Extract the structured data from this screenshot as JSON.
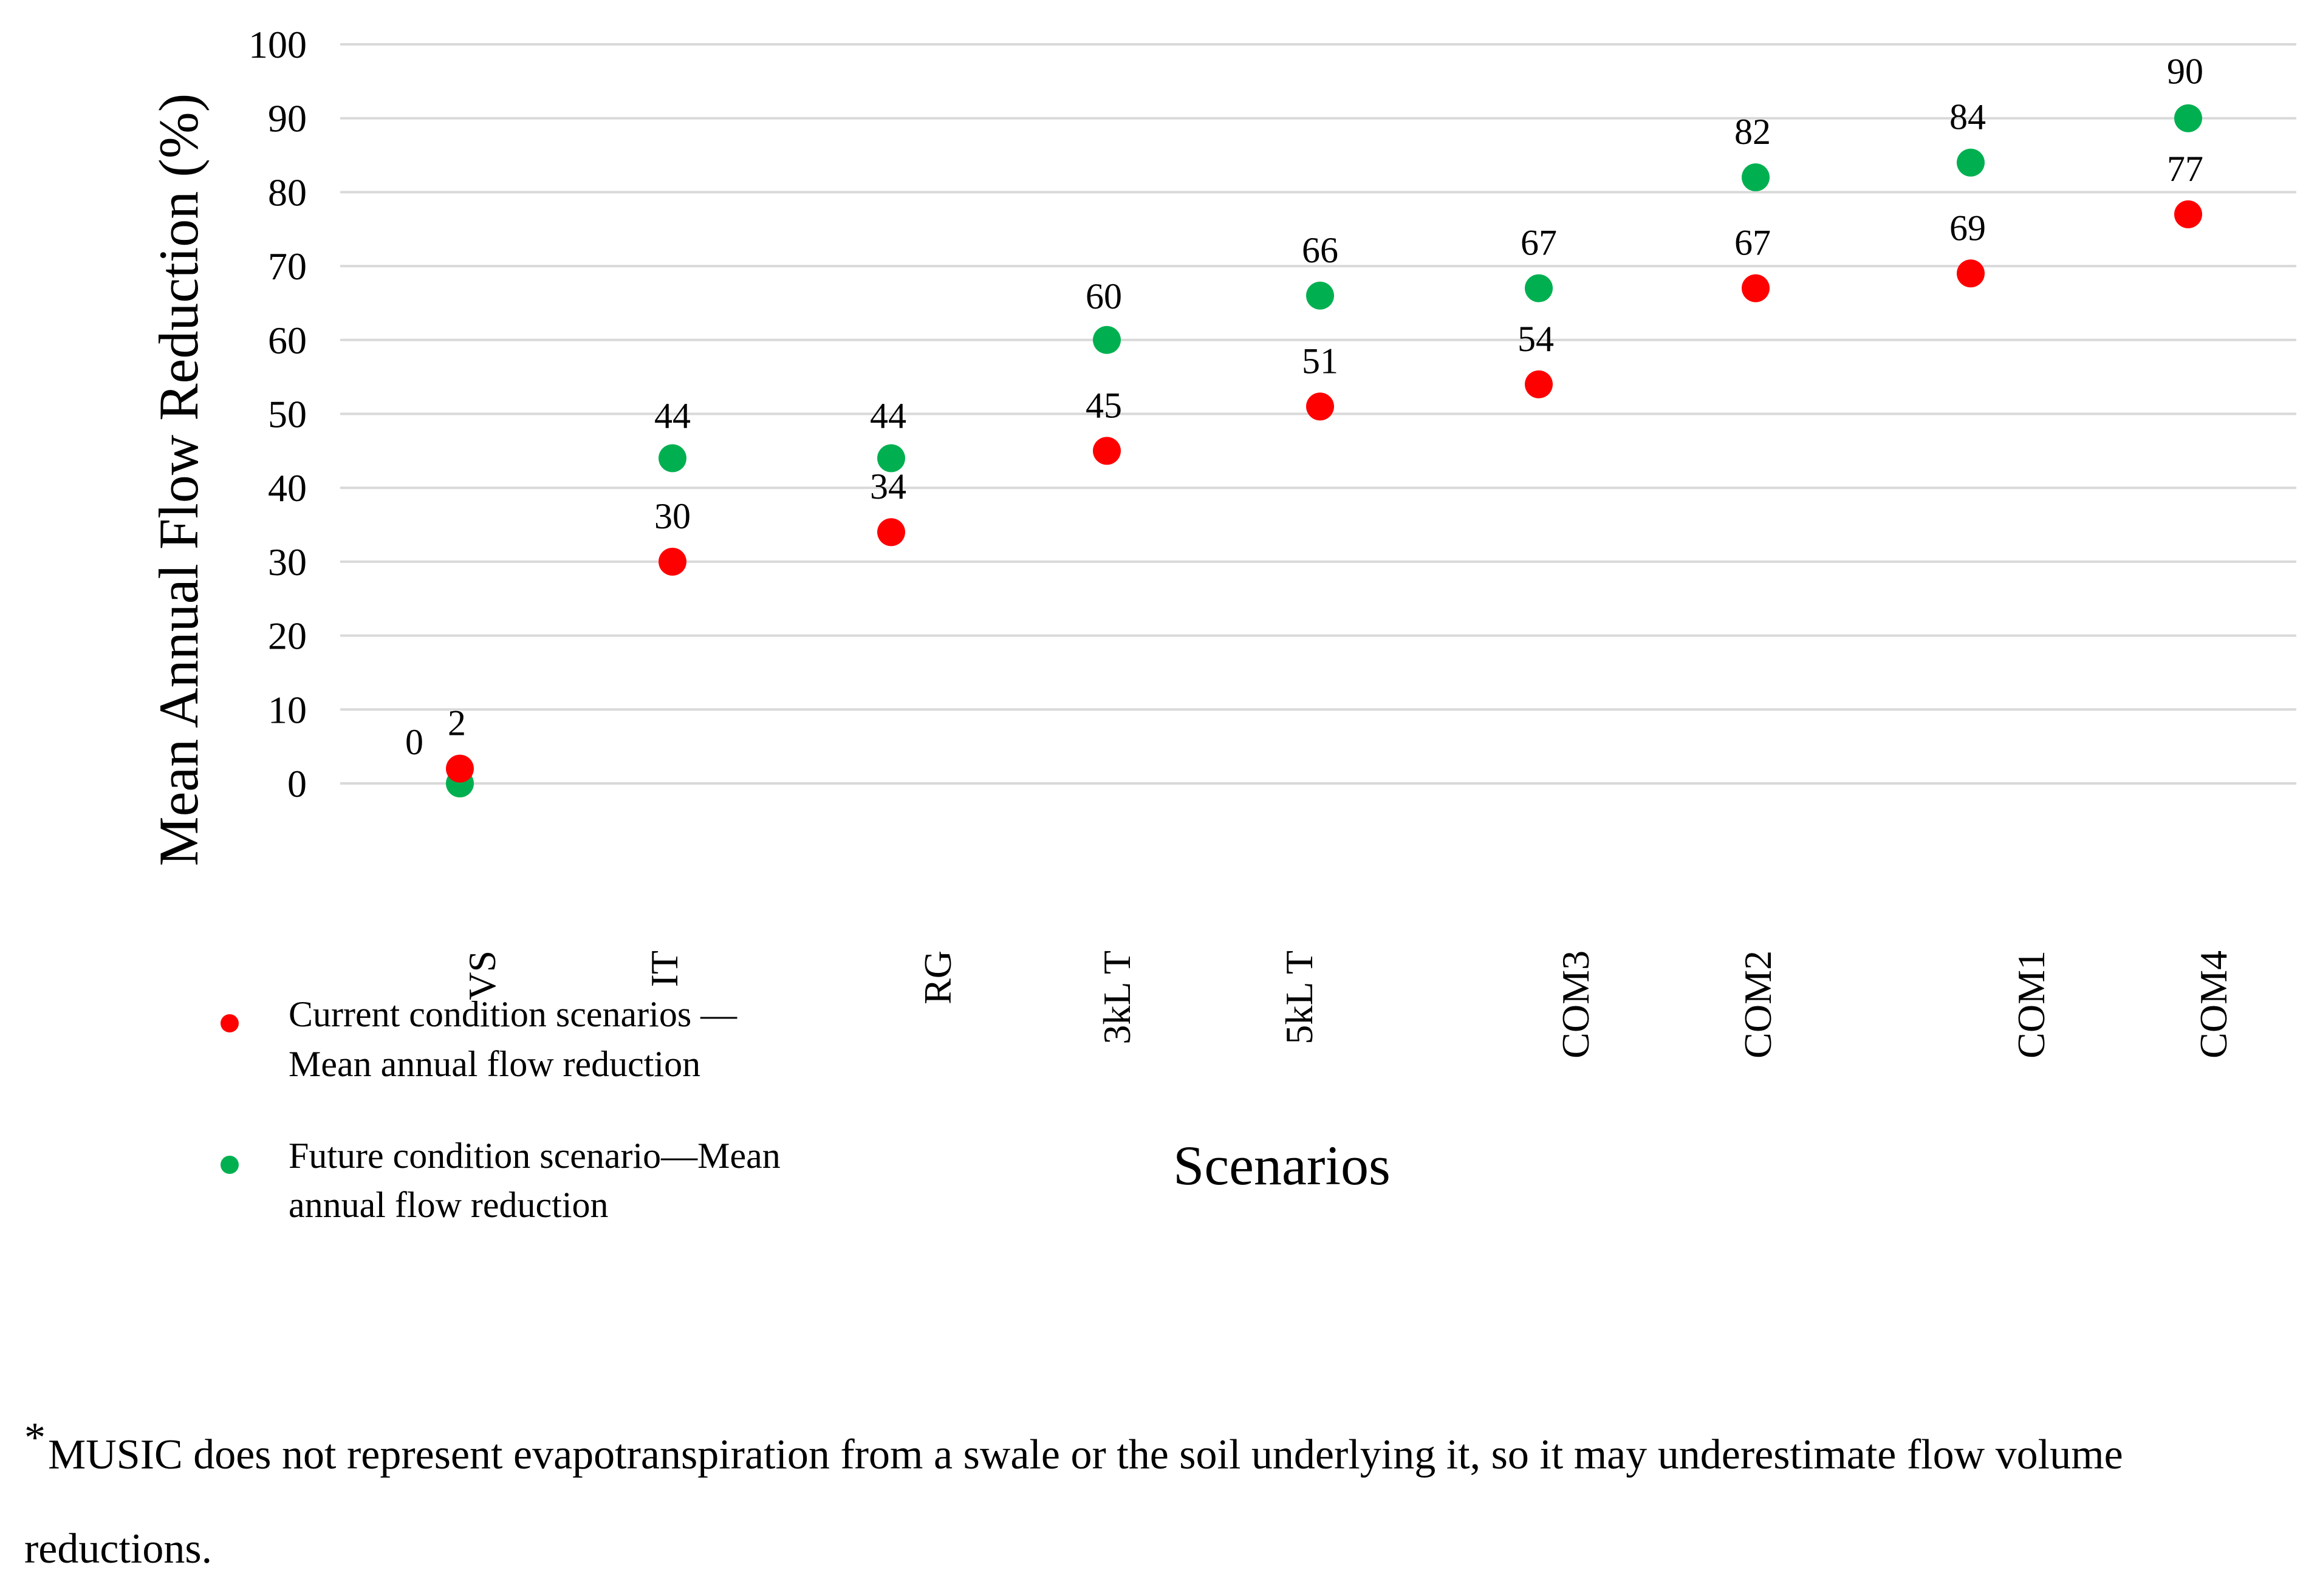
{
  "chart_data": {
    "type": "scatter",
    "categories": [
      "VS",
      "IT",
      "RG",
      "3kL T",
      "5kL T",
      "COM3",
      "COM2",
      "COM1",
      "COM4"
    ],
    "series": [
      {
        "name": "Current condition scenarios — Mean annual flow reduction",
        "color": "#ff0000",
        "values": [
          2,
          30,
          34,
          45,
          51,
          54,
          67,
          69,
          77
        ],
        "labels": [
          "2",
          "30",
          "34",
          "45",
          "51",
          "54",
          "67",
          "69",
          "77"
        ]
      },
      {
        "name": "Future condition scenario—Mean annual flow reduction",
        "color": "#00b050",
        "values": [
          0,
          44,
          44,
          60,
          66,
          67,
          82,
          84,
          90
        ],
        "labels": [
          "0",
          "44",
          "44",
          "60",
          "66",
          "67",
          "82",
          "84",
          "90"
        ]
      }
    ],
    "ylabel": "Mean Annual Flow Reduction (%)",
    "xlabel": "Scenarios",
    "ylim": [
      0,
      100
    ],
    "yticks": [
      "0",
      "10",
      "20",
      "30",
      "40",
      "50",
      "60",
      "70",
      "80",
      "90",
      "100"
    ],
    "grid": true,
    "legend_position": "bottom-left",
    "legend_lines": [
      [
        "Current condition scenarios —",
        "Mean annual flow reduction"
      ],
      [
        "Future condition scenario—Mean",
        "annual flow reduction"
      ]
    ]
  },
  "footnote": {
    "marker": "*",
    "text": "MUSIC does not represent evapotranspiration from a swale or the soil underlying it, so it may underestimate flow volume reductions."
  }
}
